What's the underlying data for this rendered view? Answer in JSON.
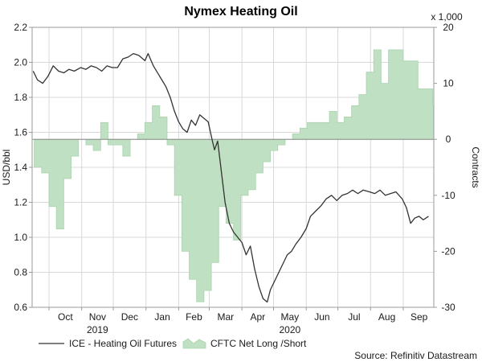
{
  "chart_data": {
    "type": "line",
    "title": "Nymex Heating Oil",
    "ylabel_left": "USD/bbl",
    "ylabel_right": "Contracts",
    "right_axis_unit": "x 1,000",
    "source": "Source: Refinitiv Datastream",
    "colors": {
      "line": "#333333",
      "area": "#bfe0c2",
      "area_stroke": "#a9d3ad",
      "frame": "#9a9a9a"
    },
    "x_tick_labels": [
      "Oct",
      "Nov",
      "Dec",
      "Jan",
      "Feb",
      "Mar",
      "Apr",
      "May",
      "Jun",
      "Jul",
      "Aug",
      "Sep"
    ],
    "year_labels": [
      {
        "label": "2019",
        "month": "Nov"
      },
      {
        "label": "2020",
        "month": "May"
      }
    ],
    "xlim_months": [
      "2019-09-15",
      "2020-09-30"
    ],
    "ylim_left": [
      0.6,
      2.2
    ],
    "yticks_left": [
      0.6,
      0.8,
      1.0,
      1.2,
      1.4,
      1.6,
      1.8,
      2.0,
      2.2
    ],
    "ylim_right": [
      -30,
      20
    ],
    "yticks_right": [
      -30,
      -20,
      -10,
      0,
      10,
      20
    ],
    "grid": true,
    "legend_placement": "bottom-left",
    "series": [
      {
        "name": "ICE - Heating Oil Futures",
        "kind": "line",
        "axis": "left",
        "x": [
          "2019-09-16",
          "2019-09-20",
          "2019-09-25",
          "2019-09-30",
          "2019-10-05",
          "2019-10-10",
          "2019-10-15",
          "2019-10-20",
          "2019-10-25",
          "2019-10-31",
          "2019-11-05",
          "2019-11-10",
          "2019-11-15",
          "2019-11-20",
          "2019-11-25",
          "2019-11-30",
          "2019-12-05",
          "2019-12-10",
          "2019-12-15",
          "2019-12-20",
          "2019-12-25",
          "2019-12-31",
          "2020-01-03",
          "2020-01-08",
          "2020-01-12",
          "2020-01-16",
          "2020-01-20",
          "2020-01-24",
          "2020-01-28",
          "2020-02-01",
          "2020-02-05",
          "2020-02-09",
          "2020-02-13",
          "2020-02-17",
          "2020-02-21",
          "2020-02-25",
          "2020-02-29",
          "2020-03-04",
          "2020-03-06",
          "2020-03-09",
          "2020-03-12",
          "2020-03-16",
          "2020-03-20",
          "2020-03-24",
          "2020-03-28",
          "2020-04-01",
          "2020-04-05",
          "2020-04-09",
          "2020-04-13",
          "2020-04-17",
          "2020-04-21",
          "2020-04-25",
          "2020-04-28",
          "2020-05-02",
          "2020-05-06",
          "2020-05-10",
          "2020-05-14",
          "2020-05-18",
          "2020-05-22",
          "2020-05-27",
          "2020-06-01",
          "2020-06-05",
          "2020-06-10",
          "2020-06-15",
          "2020-06-20",
          "2020-06-25",
          "2020-06-30",
          "2020-07-05",
          "2020-07-10",
          "2020-07-15",
          "2020-07-20",
          "2020-07-25",
          "2020-07-31",
          "2020-08-05",
          "2020-08-10",
          "2020-08-15",
          "2020-08-20",
          "2020-08-25",
          "2020-08-31",
          "2020-09-04",
          "2020-09-08",
          "2020-09-12",
          "2020-09-16",
          "2020-09-20",
          "2020-09-25"
        ],
        "values": [
          1.95,
          1.9,
          1.88,
          1.92,
          1.98,
          1.95,
          1.94,
          1.96,
          1.95,
          1.97,
          1.96,
          1.98,
          1.97,
          1.95,
          1.98,
          1.97,
          1.97,
          2.02,
          2.03,
          2.05,
          2.04,
          2.01,
          2.05,
          1.98,
          1.94,
          1.9,
          1.86,
          1.8,
          1.72,
          1.66,
          1.62,
          1.6,
          1.67,
          1.64,
          1.7,
          1.68,
          1.66,
          1.55,
          1.5,
          1.55,
          1.4,
          1.2,
          1.08,
          1.03,
          1.0,
          0.97,
          0.9,
          0.95,
          0.82,
          0.72,
          0.65,
          0.63,
          0.7,
          0.75,
          0.8,
          0.85,
          0.9,
          0.92,
          0.96,
          1.0,
          1.05,
          1.12,
          1.15,
          1.18,
          1.22,
          1.24,
          1.21,
          1.24,
          1.25,
          1.27,
          1.25,
          1.27,
          1.26,
          1.25,
          1.27,
          1.24,
          1.25,
          1.26,
          1.22,
          1.17,
          1.08,
          1.11,
          1.12,
          1.1,
          1.12
        ]
      },
      {
        "name": "CFTC Net Long /Short",
        "kind": "area",
        "axis": "right",
        "x": [
          "2019-09-17",
          "2019-09-24",
          "2019-10-01",
          "2019-10-08",
          "2019-10-15",
          "2019-10-22",
          "2019-10-29",
          "2019-11-05",
          "2019-11-12",
          "2019-11-19",
          "2019-11-26",
          "2019-12-03",
          "2019-12-10",
          "2019-12-17",
          "2019-12-24",
          "2019-12-31",
          "2020-01-07",
          "2020-01-14",
          "2020-01-21",
          "2020-01-28",
          "2020-02-04",
          "2020-02-11",
          "2020-02-18",
          "2020-02-25",
          "2020-03-03",
          "2020-03-10",
          "2020-03-17",
          "2020-03-24",
          "2020-03-31",
          "2020-04-07",
          "2020-04-14",
          "2020-04-21",
          "2020-04-28",
          "2020-05-05",
          "2020-05-12",
          "2020-05-19",
          "2020-05-26",
          "2020-06-02",
          "2020-06-09",
          "2020-06-16",
          "2020-06-23",
          "2020-06-30",
          "2020-07-07",
          "2020-07-14",
          "2020-07-21",
          "2020-07-28",
          "2020-08-04",
          "2020-08-11",
          "2020-08-18",
          "2020-08-25",
          "2020-09-01",
          "2020-09-08",
          "2020-09-15",
          "2020-09-22",
          "2020-09-29"
        ],
        "values": [
          -5,
          -6,
          -12,
          -16,
          -7,
          -3,
          0,
          -1,
          -2,
          3,
          -1,
          -1,
          -3,
          0,
          1,
          3,
          6,
          4,
          -1,
          -10,
          -20,
          -25,
          -29,
          -27,
          -22,
          -12,
          -15,
          -18,
          -10,
          -9,
          -6,
          -4,
          -2,
          -1,
          0,
          1,
          2,
          3,
          3,
          3,
          5,
          3,
          4,
          6,
          8,
          12,
          16,
          10,
          16,
          16,
          14,
          14,
          9,
          9,
          6
        ]
      }
    ]
  }
}
